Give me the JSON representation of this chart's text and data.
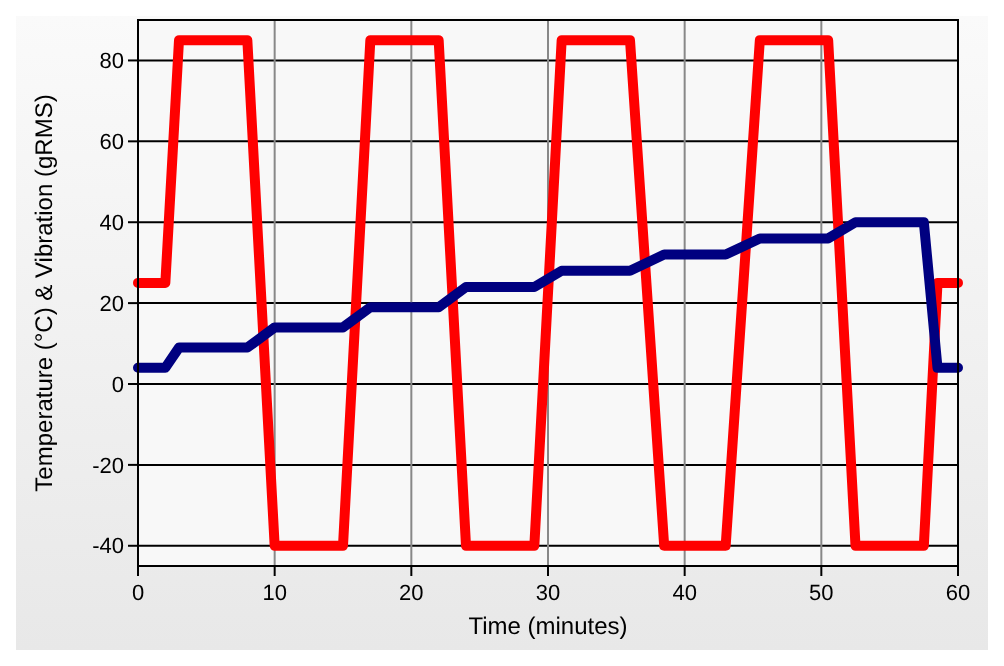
{
  "chart_data": {
    "type": "line",
    "xlabel": "Time (minutes)",
    "ylabel": "Temperature (°C) & Vibration (gRMS)",
    "xlim": [
      0,
      60
    ],
    "xticks": [
      0,
      10,
      20,
      30,
      40,
      50,
      60
    ],
    "ylim": [
      -45,
      90
    ],
    "yticks": [
      -40,
      -20,
      0,
      20,
      40,
      60,
      80
    ],
    "grid": true,
    "line_style": "solid",
    "marker": "none",
    "series": [
      {
        "color": "#ff0000",
        "x": [
          0,
          2,
          3,
          8,
          10,
          15,
          17,
          22,
          24,
          29,
          31,
          36,
          38.5,
          43,
          45.5,
          50.5,
          52.5,
          57.5,
          58.5,
          60
        ],
        "values": [
          25,
          25,
          85,
          85,
          -40,
          -40,
          85,
          85,
          -40,
          -40,
          85,
          85,
          -40,
          -40,
          85,
          85,
          -40,
          -40,
          25,
          25
        ]
      },
      {
        "color": "#000080",
        "x": [
          0,
          2,
          3,
          8,
          10,
          15,
          17,
          22,
          24,
          29,
          31,
          36,
          38.5,
          43,
          45.5,
          50.5,
          52.5,
          57.5,
          58.5,
          60
        ],
        "values": [
          4,
          4,
          9,
          9,
          14,
          14,
          19,
          19,
          24,
          24,
          28,
          28,
          32,
          32,
          36,
          36,
          40,
          40,
          4,
          4
        ]
      }
    ]
  }
}
